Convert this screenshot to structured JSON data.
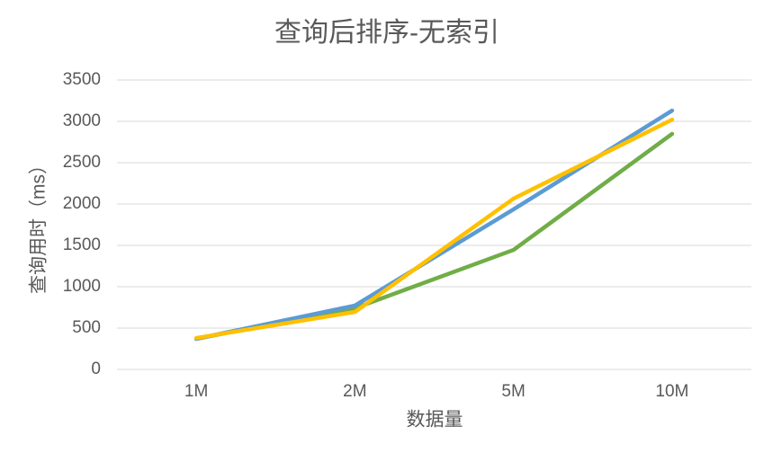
{
  "chart_data": {
    "type": "line",
    "title": "查询后排序-无索引",
    "x_label": "数据量",
    "y_label": "查询用时（ms）",
    "categories": [
      "1M",
      "2M",
      "5M",
      "10M"
    ],
    "series": [
      {
        "color": "#70ad47",
        "values": [
          370,
          740,
          1445,
          2848
        ]
      },
      {
        "color": "#5b9bd5",
        "values": [
          370,
          772,
          1935,
          3130
        ]
      },
      {
        "color": "#ffc000",
        "values": [
          380,
          695,
          2065,
          3020
        ]
      }
    ],
    "ylim": [
      0,
      3500
    ],
    "yticks": [
      0,
      500,
      1000,
      1500,
      2000,
      2500,
      3000,
      3500
    ],
    "grid": true
  }
}
